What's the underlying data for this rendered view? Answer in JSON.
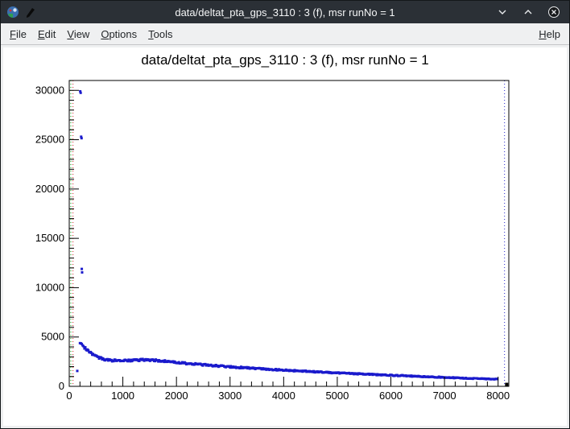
{
  "window": {
    "title": "data/deltat_pta_gps_3110 : 3 (f), msr runNo = 1",
    "controls": {
      "minimize": "minimize",
      "maximize": "maximize",
      "close": "close"
    }
  },
  "menubar": {
    "items": [
      "File",
      "Edit",
      "View",
      "Options",
      "Tools"
    ],
    "right_items": [
      "Help"
    ]
  },
  "chart_data": {
    "type": "scatter",
    "title": "data/deltat_pta_gps_3110 : 3 (f), msr runNo = 1",
    "xlabel": "",
    "ylabel": "",
    "xlim": [
      0,
      8200
    ],
    "ylim": [
      0,
      31000
    ],
    "x_ticks": {
      "major": 1000,
      "minor": 200,
      "max": 8000
    },
    "y_ticks": {
      "major": 5000,
      "minor": 1000,
      "max": 30000
    },
    "grid": false,
    "legend": false,
    "marker_color": "#1a1acc",
    "sample_step": 15,
    "series_band_anchors": [
      [
        200,
        4300
      ],
      [
        250,
        4100
      ],
      [
        300,
        3850
      ],
      [
        400,
        3400
      ],
      [
        500,
        3050
      ],
      [
        600,
        2820
      ],
      [
        700,
        2680
      ],
      [
        800,
        2620
      ],
      [
        1000,
        2600
      ],
      [
        1200,
        2650
      ],
      [
        1400,
        2690
      ],
      [
        1600,
        2640
      ],
      [
        1800,
        2540
      ],
      [
        2000,
        2430
      ],
      [
        2200,
        2320
      ],
      [
        2400,
        2230
      ],
      [
        2600,
        2140
      ],
      [
        2800,
        2060
      ],
      [
        3000,
        1980
      ],
      [
        3250,
        1890
      ],
      [
        3500,
        1800
      ],
      [
        3750,
        1720
      ],
      [
        4000,
        1640
      ],
      [
        4250,
        1570
      ],
      [
        4500,
        1500
      ],
      [
        4750,
        1430
      ],
      [
        5000,
        1360
      ],
      [
        5250,
        1300
      ],
      [
        5500,
        1240
      ],
      [
        5750,
        1180
      ],
      [
        6000,
        1120
      ],
      [
        6250,
        1070
      ],
      [
        6500,
        1010
      ],
      [
        6750,
        960
      ],
      [
        7000,
        910
      ],
      [
        7250,
        860
      ],
      [
        7500,
        810
      ],
      [
        7750,
        760
      ],
      [
        8000,
        710
      ]
    ],
    "outlier_points": [
      [
        205,
        29900
      ],
      [
        213,
        29750
      ],
      [
        222,
        25300
      ],
      [
        230,
        25150
      ],
      [
        234,
        11900
      ],
      [
        240,
        11550
      ],
      [
        150,
        1560
      ]
    ],
    "vlines": [
      {
        "x": 30,
        "color": "#00a000",
        "style": "dotted"
      },
      {
        "x": 70,
        "color": "#cc2222",
        "style": "dotted"
      },
      {
        "x": 8120,
        "color": "#2222cc",
        "style": "dotted"
      }
    ],
    "end_marker": {
      "x": 8160,
      "y": 200,
      "color": "#000000"
    }
  }
}
